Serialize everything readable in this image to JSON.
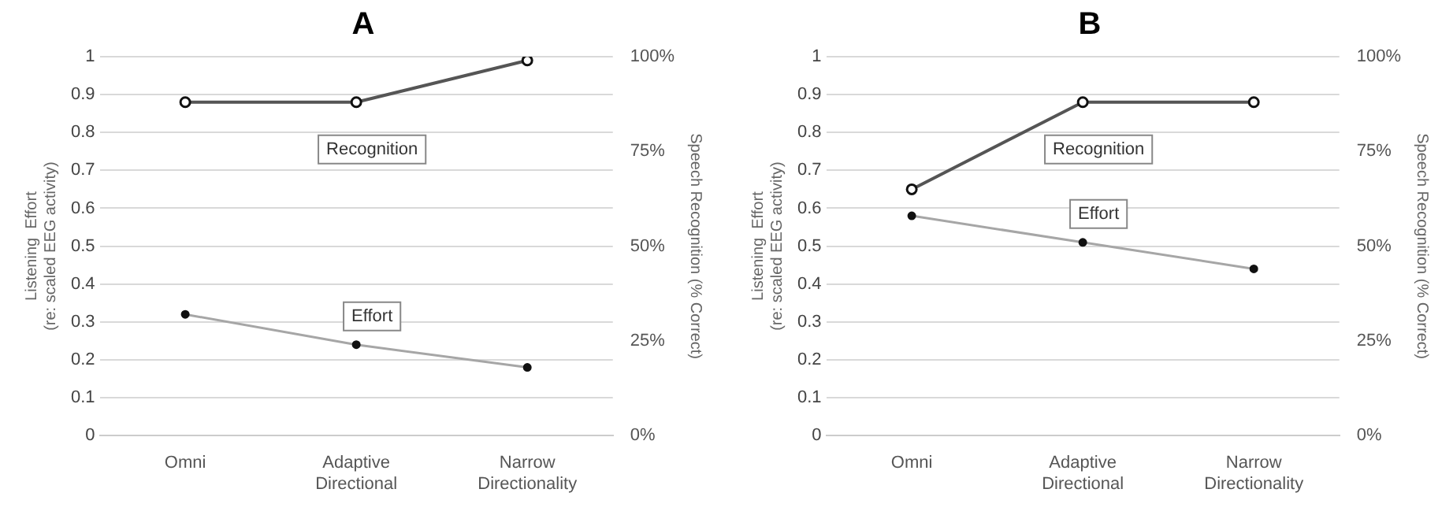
{
  "chart_data": [
    {
      "type": "line",
      "title": "A",
      "categories": [
        "Omni",
        "Adaptive\nDirectional",
        "Narrow\nDirectionality"
      ],
      "ylabel": "Listening  Effort\n(re: scaled EEG activity)",
      "y2label": "Speech Recognition (% Correct)",
      "ylim": [
        0,
        1
      ],
      "yticks": [
        0,
        0.1,
        0.2,
        0.3,
        0.4,
        0.5,
        0.6,
        0.7,
        0.8,
        0.9,
        1
      ],
      "y2lim": [
        0,
        100
      ],
      "y2ticks": [
        {
          "value": 0,
          "label": "0%"
        },
        {
          "value": 25,
          "label": "25%"
        },
        {
          "value": 50,
          "label": "50%"
        },
        {
          "value": 75,
          "label": "75%"
        },
        {
          "value": 100,
          "label": "100%"
        }
      ],
      "grid": "y",
      "legend": false,
      "marker": "circle",
      "series": [
        {
          "name": "Recognition",
          "color": "#555555",
          "axis": "y2",
          "values": [
            88,
            88,
            99
          ]
        },
        {
          "name": "Effort",
          "color": "#a6a6a6",
          "values": [
            0.32,
            0.24,
            0.18
          ]
        }
      ]
    },
    {
      "type": "line",
      "title": "B",
      "categories": [
        "Omni",
        "Adaptive\nDirectional",
        "Narrow\nDirectionality"
      ],
      "ylabel": "Listening  Effort\n(re: scaled EEG activity)",
      "y2label": "Speech Recognition (% Correct)",
      "ylim": [
        0,
        1
      ],
      "yticks": [
        0,
        0.1,
        0.2,
        0.3,
        0.4,
        0.5,
        0.6,
        0.7,
        0.8,
        0.9,
        1
      ],
      "y2lim": [
        0,
        100
      ],
      "y2ticks": [
        {
          "value": 0,
          "label": "0%"
        },
        {
          "value": 25,
          "label": "25%"
        },
        {
          "value": 50,
          "label": "50%"
        },
        {
          "value": 75,
          "label": "75%"
        },
        {
          "value": 100,
          "label": "100%"
        }
      ],
      "grid": "y",
      "legend": false,
      "marker": "circle",
      "series": [
        {
          "name": "Recognition",
          "color": "#555555",
          "axis": "y2",
          "values": [
            65,
            88,
            88
          ]
        },
        {
          "name": "Effort",
          "color": "#a6a6a6",
          "values": [
            0.58,
            0.51,
            0.44
          ]
        }
      ]
    }
  ]
}
